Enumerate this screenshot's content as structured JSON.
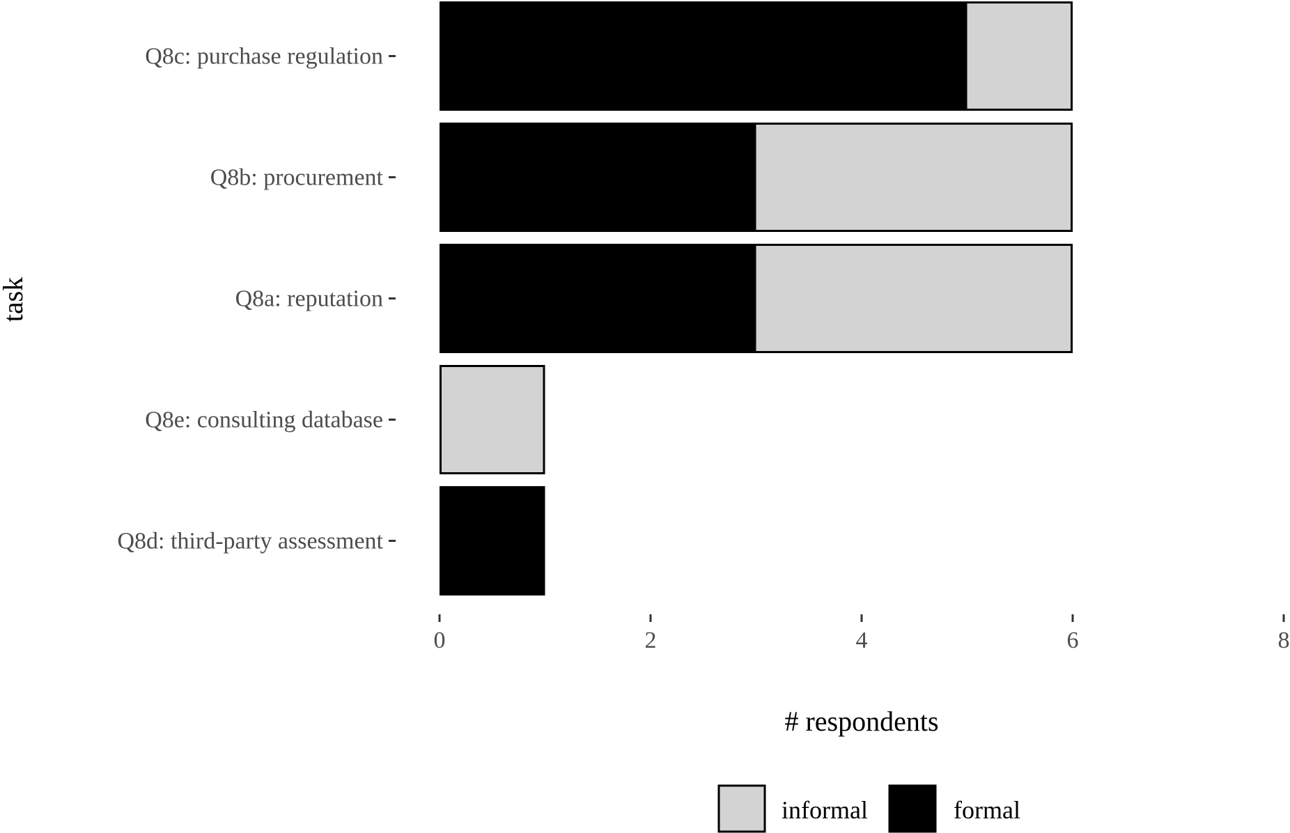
{
  "chart_data": {
    "type": "bar",
    "orientation": "horizontal",
    "stacked": true,
    "categories": [
      "Q8c: purchase regulation",
      "Q8b: procurement",
      "Q8a: reputation",
      "Q8e: consulting database",
      "Q8d: third-party assessment"
    ],
    "series": [
      {
        "name": "formal",
        "values": [
          5,
          3,
          3,
          0,
          1
        ],
        "color": "#000000"
      },
      {
        "name": "informal",
        "values": [
          1,
          3,
          3,
          1,
          0
        ],
        "color": "#d3d3d3"
      }
    ],
    "xlabel": "# respondents",
    "ylabel": "task",
    "xlim": [
      0,
      8
    ],
    "xticks": [
      "0",
      "2",
      "4",
      "6",
      "8"
    ],
    "grid": false,
    "legend": {
      "position": "bottom",
      "entries": [
        {
          "label": "informal",
          "color": "#d3d3d3"
        },
        {
          "label": "formal",
          "color": "#000000"
        }
      ]
    }
  }
}
